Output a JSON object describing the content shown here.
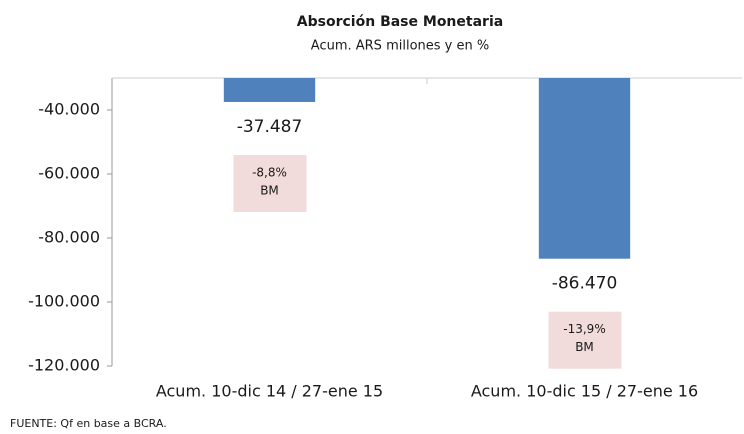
{
  "chart_data": {
    "type": "bar",
    "title": "Absorción Base Monetaria",
    "subtitle": "Acum. ARS millones y en %",
    "categories": [
      "Acum. 10-dic 14 / 27-ene 15",
      "Acum. 10-dic 15 / 27-ene 16"
    ],
    "values": [
      -37487,
      -86470
    ],
    "value_labels": [
      "-37.487",
      "-86.470"
    ],
    "color": "#4f81bd",
    "ylim": [
      -120000,
      -30000
    ],
    "yticks": [
      {
        "value": -40000,
        "label": "-40.000"
      },
      {
        "value": -60000,
        "label": "-60.000"
      },
      {
        "value": -80000,
        "label": "-80.000"
      },
      {
        "value": -100000,
        "label": "-100.000"
      },
      {
        "value": -120000,
        "label": "-120.000"
      }
    ],
    "grid": false,
    "annotations": [
      [
        "-8,8%",
        "BM"
      ],
      [
        "-13,9%",
        "BM"
      ]
    ],
    "source": "FUENTE: Qf en base a BCRA."
  }
}
